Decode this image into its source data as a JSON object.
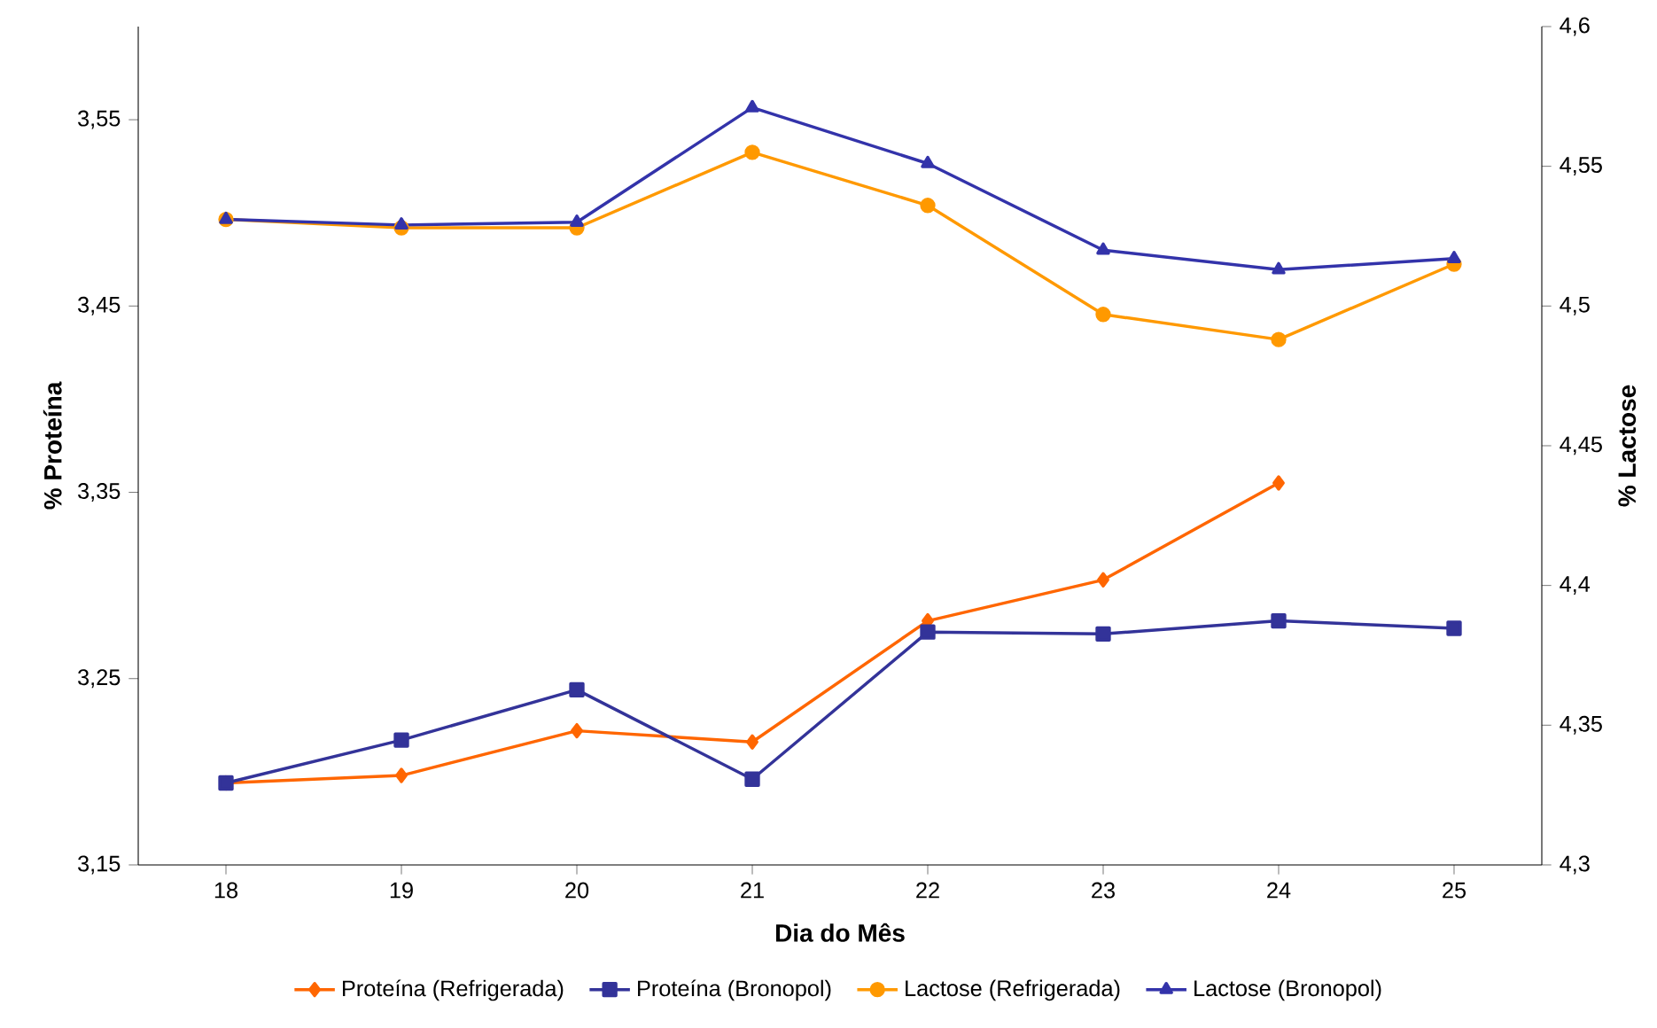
{
  "chart_data": {
    "type": "line",
    "xlabel": "Dia do Mês",
    "ylabel": "% Proteína",
    "y2label": "% Lactose",
    "categories": [
      "18",
      "19",
      "20",
      "21",
      "22",
      "23",
      "24",
      "25"
    ],
    "ylim": [
      3.15,
      3.6
    ],
    "yticks": [
      {
        "value": 3.15,
        "label": "3,15"
      },
      {
        "value": 3.25,
        "label": "3,25"
      },
      {
        "value": 3.35,
        "label": "3,35"
      },
      {
        "value": 3.45,
        "label": "3,45"
      },
      {
        "value": 3.55,
        "label": "3,55"
      }
    ],
    "y2lim": [
      4.3,
      4.6
    ],
    "y2ticks": [
      {
        "value": 4.3,
        "label": "4,3"
      },
      {
        "value": 4.35,
        "label": "4,35"
      },
      {
        "value": 4.4,
        "label": "4,4"
      },
      {
        "value": 4.45,
        "label": "4,45"
      },
      {
        "value": 4.5,
        "label": "4,5"
      },
      {
        "value": 4.55,
        "label": "4,55"
      },
      {
        "value": 4.6,
        "label": "4,6"
      }
    ],
    "legend": "bottom",
    "series": [
      {
        "name": "Proteína (Refrigerada)",
        "color": "#ff6600",
        "marker": "diamond",
        "values": [
          3.194,
          3.198,
          3.222,
          3.216,
          3.281,
          3.303,
          3.355,
          null
        ]
      },
      {
        "name": "Proteína (Bronopol)",
        "color": "#333399",
        "marker": "square",
        "values": [
          3.194,
          3.217,
          3.244,
          3.196,
          3.275,
          3.274,
          3.281,
          3.277
        ]
      },
      {
        "name": "Lactose (Refrigerada)",
        "color": "#ff9900",
        "marker": "circle",
        "axis": "y2",
        "values": [
          4.531,
          4.528,
          4.528,
          4.555,
          4.536,
          4.497,
          4.488,
          4.515
        ]
      },
      {
        "name": "Lactose (Bronopol)",
        "color": "#3333aa",
        "marker": "triangle",
        "axis": "y2",
        "values": [
          4.531,
          4.529,
          4.53,
          4.571,
          4.551,
          4.52,
          4.513,
          4.517
        ]
      }
    ]
  }
}
